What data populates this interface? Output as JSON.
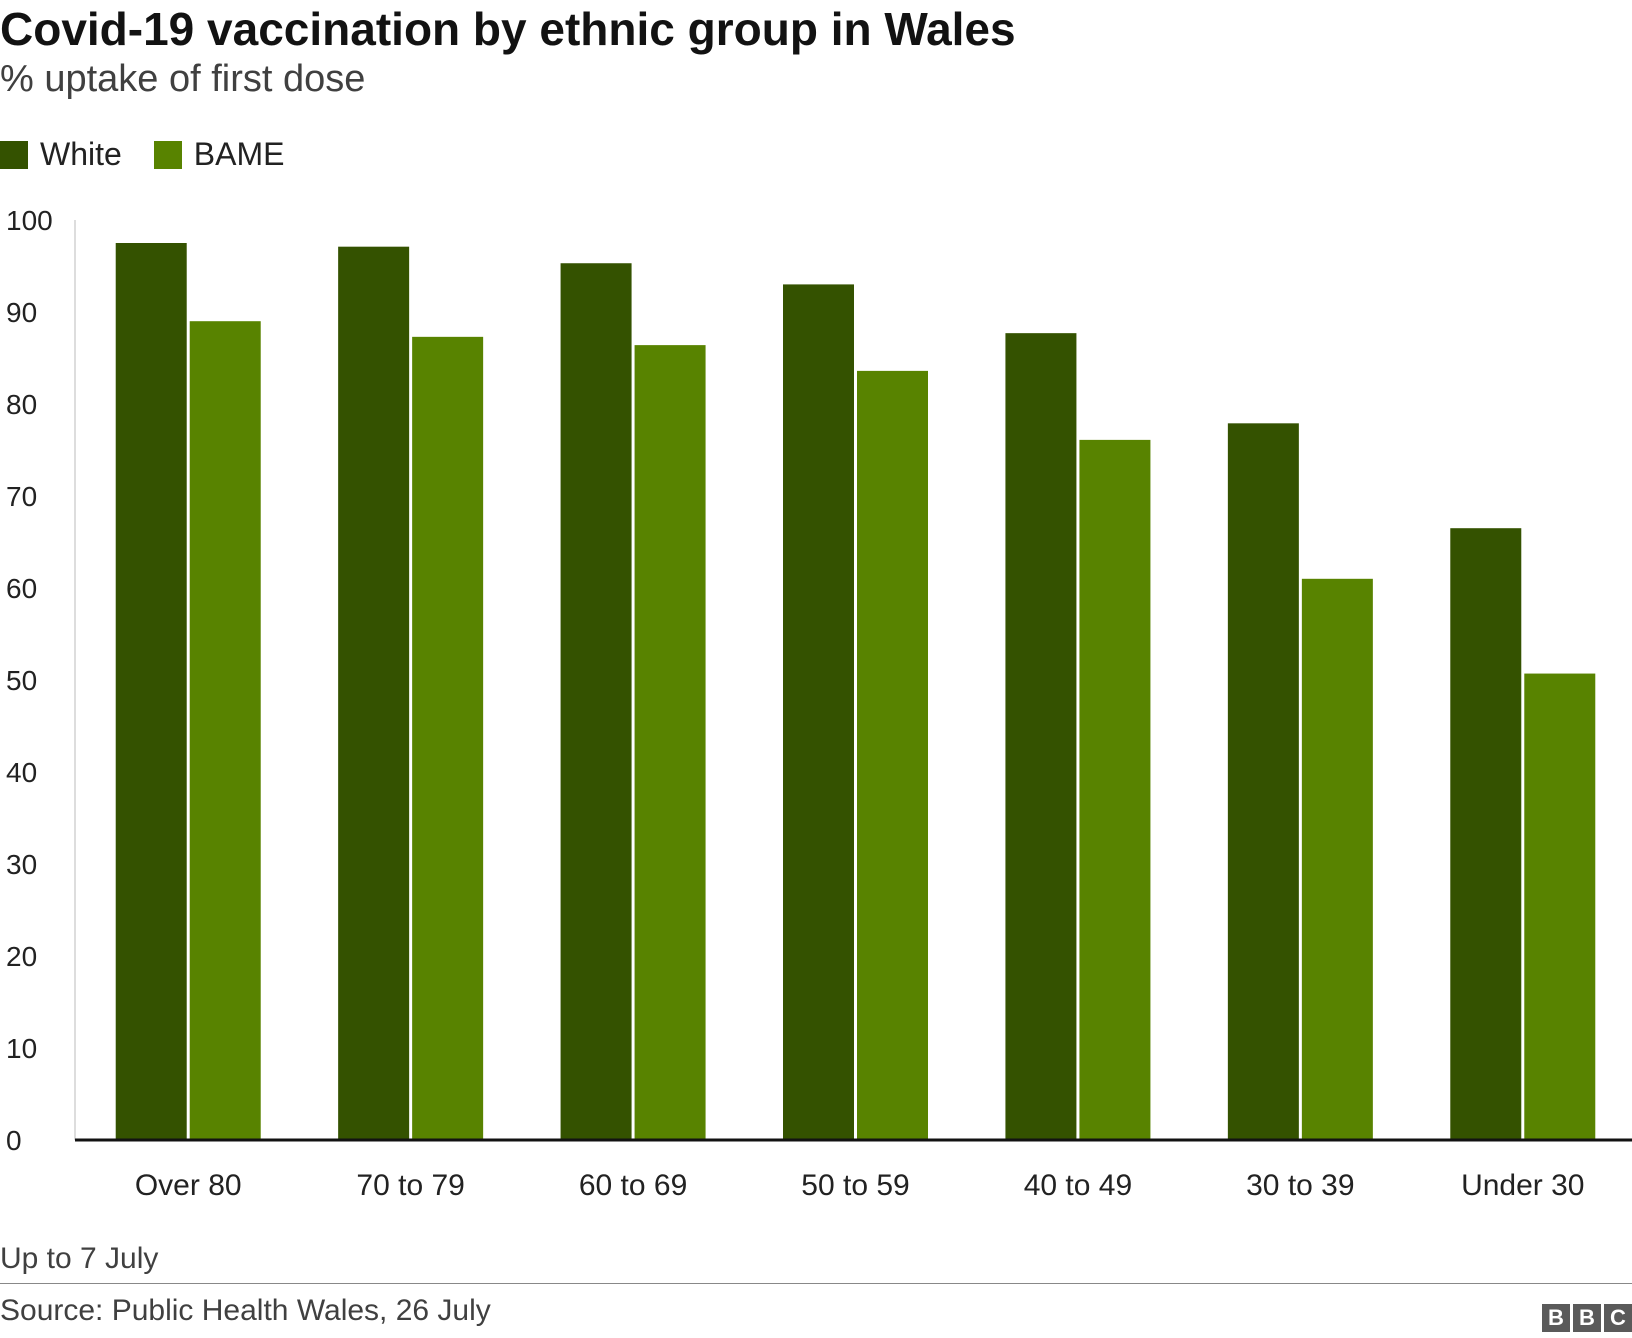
{
  "header": {
    "title": "Covid-19 vaccination by ethnic group in Wales",
    "subtitle": "% uptake of first dose"
  },
  "legend": [
    {
      "label": "White",
      "color": "#345200"
    },
    {
      "label": "BAME",
      "color": "#588300"
    }
  ],
  "chart_data": {
    "type": "bar",
    "title": "Covid-19 vaccination by ethnic group in Wales",
    "subtitle": "% uptake of first dose",
    "categories": [
      "Over 80",
      "70 to 79",
      "60 to 69",
      "50 to 59",
      "40 to 49",
      "30 to 39",
      "Under 30"
    ],
    "series": [
      {
        "name": "White",
        "color": "#345200",
        "values": [
          97.5,
          97.1,
          95.3,
          93.0,
          87.7,
          77.9,
          66.5
        ]
      },
      {
        "name": "BAME",
        "color": "#588300",
        "values": [
          89.0,
          87.3,
          86.4,
          83.6,
          76.1,
          61.0,
          50.7
        ]
      }
    ],
    "y_ticks": [
      "0",
      "10",
      "20",
      "30",
      "40",
      "50",
      "60",
      "70",
      "80",
      "90",
      "100"
    ],
    "ylim": [
      0,
      100
    ],
    "grid": false,
    "legend_position": "top-left"
  },
  "footer": {
    "note": "Up to 7 July",
    "source": "Source: Public Health Wales, 26 July",
    "logo_letters": [
      "B",
      "B",
      "C"
    ]
  }
}
